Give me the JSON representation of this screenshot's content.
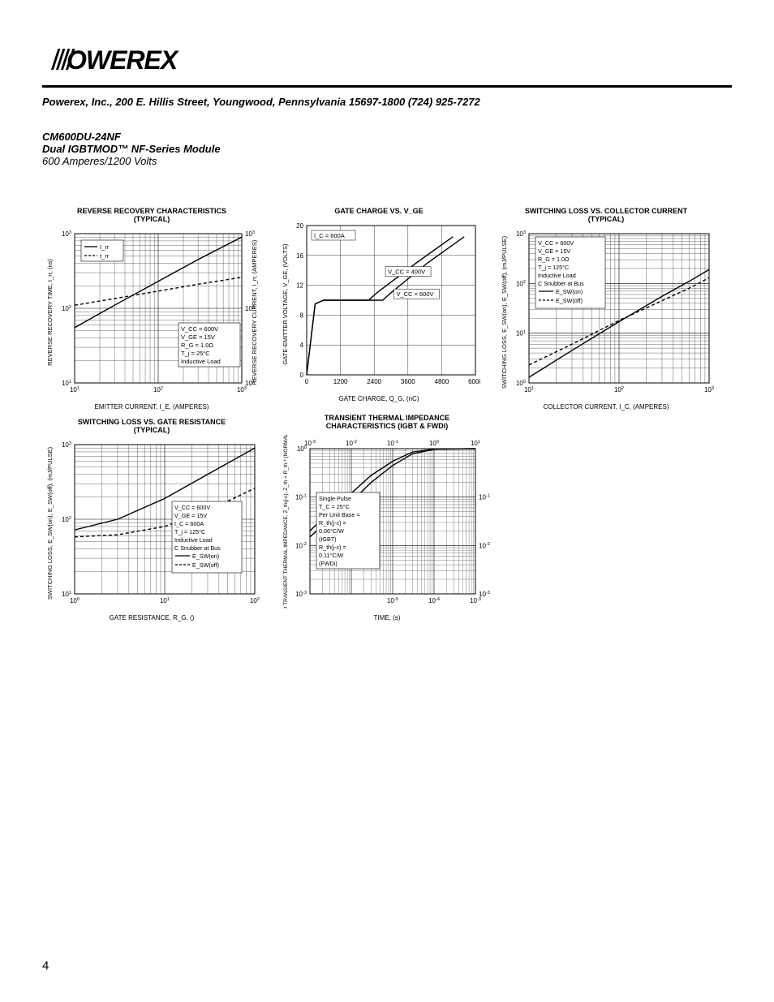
{
  "header": {
    "company_line": "Powerex, Inc., 200 E. Hillis Street, Youngwood, Pennsylvania 15697-1800 (724) 925-7272",
    "part_number": "CM600DU-24NF",
    "module_line": "Dual IGBTMOD™ NF-Series Module",
    "rating_line": "600 Amperes/1200 Volts"
  },
  "page_number": "4",
  "colors": {
    "ink": "#000000",
    "bg": "#ffffff",
    "grid": "#000000"
  },
  "charts": {
    "reverse_recovery": {
      "title": "REVERSE RECOVERY CHARACTERISTICS (TYPICAL)",
      "xlabel": "EMITTER CURRENT, I_E, (AMPERES)",
      "ylabel_left": "REVERSE RECOVERY TIME, t_rr, (ns)",
      "ylabel_right": "REVERSE RECOVERY CURRENT, I_rr, (AMPERES)",
      "xscale": "log",
      "yscale": "log",
      "xlim": [
        10,
        1000
      ],
      "ylim": [
        10,
        1000
      ],
      "xticks": [
        "10^1",
        "10^2",
        "10^3"
      ],
      "yticks": [
        "10^1",
        "10^2",
        "10^3"
      ],
      "legend": [
        {
          "label": "I_rr",
          "dash": "solid"
        },
        {
          "label": "t_rr",
          "dash": "dash"
        }
      ],
      "conditions": [
        "V_CC = 600V",
        "V_GE = 15V",
        "R_G = 1.0Ω",
        "T_j = 25°C",
        "Inductive Load"
      ],
      "series": {
        "Irr": [
          [
            10,
            55
          ],
          [
            30,
            110
          ],
          [
            100,
            230
          ],
          [
            300,
            450
          ],
          [
            1000,
            900
          ]
        ],
        "trr": [
          [
            10,
            110
          ],
          [
            30,
            135
          ],
          [
            100,
            170
          ],
          [
            300,
            210
          ],
          [
            1000,
            260
          ]
        ]
      },
      "line_width": 1.4
    },
    "gate_charge": {
      "title": "GATE CHARGE VS. V_GE",
      "xlabel": "GATE CHARGE, Q_G, (nC)",
      "ylabel": "GATE-EMITTER VOLTAGE, V_GE, (VOLTS)",
      "xscale": "linear",
      "yscale": "linear",
      "xlim": [
        0,
        6000
      ],
      "ylim": [
        0,
        20
      ],
      "xticks": [
        0,
        1200,
        2400,
        3600,
        4800,
        6000
      ],
      "yticks": [
        0,
        4,
        8,
        12,
        16,
        20
      ],
      "annotations": [
        "I_C = 600A",
        "V_CC = 400V",
        "V_CC = 600V"
      ],
      "series": {
        "400V": [
          [
            0,
            0
          ],
          [
            300,
            9.5
          ],
          [
            600,
            10
          ],
          [
            2200,
            10
          ],
          [
            2500,
            11
          ],
          [
            3900,
            15
          ],
          [
            5200,
            18.5
          ]
        ],
        "600V": [
          [
            0,
            0
          ],
          [
            300,
            9.5
          ],
          [
            600,
            10
          ],
          [
            2700,
            10
          ],
          [
            3000,
            11
          ],
          [
            4300,
            15
          ],
          [
            5600,
            18.5
          ]
        ]
      },
      "line_width": 1.4
    },
    "switching_loss_current": {
      "title": "SWITCHING LOSS VS. COLLECTOR CURRENT (TYPICAL)",
      "xlabel": "COLLECTOR CURRENT, I_C, (AMPERES)",
      "ylabel": "SWITCHING LOSS, E_SW(on), E_SW(off), (mJ/PULSE)",
      "xscale": "log",
      "yscale": "log",
      "xlim": [
        10,
        1000
      ],
      "ylim": [
        1,
        1000
      ],
      "xticks": [
        "10^1",
        "10^2",
        "10^3"
      ],
      "yticks": [
        "10^0",
        "10^1",
        "10^2",
        "10^3"
      ],
      "conditions": [
        "V_CC = 600V",
        "V_GE = 15V",
        "R_G = 1.0Ω",
        "T_j = 125°C",
        "Inductive Load",
        "C Snubber at Bus"
      ],
      "legend": [
        {
          "label": "E_SW(on)",
          "dash": "solid"
        },
        {
          "label": "E_SW(off)",
          "dash": "dash"
        }
      ],
      "series": {
        "Eon": [
          [
            10,
            1.3
          ],
          [
            30,
            4.5
          ],
          [
            100,
            17
          ],
          [
            300,
            55
          ],
          [
            600,
            110
          ],
          [
            1000,
            190
          ]
        ],
        "Eoff": [
          [
            10,
            2.3
          ],
          [
            30,
            6.0
          ],
          [
            100,
            18
          ],
          [
            300,
            45
          ],
          [
            600,
            80
          ],
          [
            1000,
            130
          ]
        ]
      },
      "line_width": 1.4
    },
    "switching_loss_gate": {
      "title": "SWITCHING LOSS VS. GATE RESISTANCE (TYPICAL)",
      "xlabel": "GATE RESISTANCE, R_G, ()",
      "ylabel": "SWITCHING LOSS, E_SW(on), E_SW(off), (mJ/PULSE)",
      "xscale": "log",
      "yscale": "log",
      "xlim": [
        1,
        100
      ],
      "ylim": [
        10,
        1000
      ],
      "xticks": [
        "10^0",
        "10^1",
        "10^2"
      ],
      "yticks": [
        "10^1",
        "10^2",
        "10^3"
      ],
      "conditions": [
        "V_CC = 600V",
        "V_GE = 15V",
        "I_C = 600A",
        "T_j = 125°C",
        "Inductive Load",
        "C Snubber at Bus"
      ],
      "legend": [
        {
          "label": "E_SW(on)",
          "dash": "solid"
        },
        {
          "label": "E_SW(off)",
          "dash": "dash"
        }
      ],
      "series": {
        "Eon": [
          [
            1,
            72
          ],
          [
            3,
            100
          ],
          [
            10,
            190
          ],
          [
            30,
            400
          ],
          [
            100,
            900
          ]
        ],
        "Eoff": [
          [
            1,
            58
          ],
          [
            3,
            62
          ],
          [
            10,
            80
          ],
          [
            30,
            130
          ],
          [
            100,
            260
          ]
        ]
      },
      "line_width": 1.4
    },
    "transient_thermal": {
      "title": "TRANSIENT THERMAL IMPEDANCE CHARACTERISTICS (IGBT & FWDi)",
      "xlabel": "TIME, (s)",
      "ylabel": "NORMALIZED TRANSIENT THERMAL IMPEDANCE, Z_th(j-c), Z_th = R_th * (NORMALIZED VALUE)",
      "xscale": "log",
      "yscale": "log",
      "xlim_top": [
        0.001,
        10
      ],
      "xlim_bottom": [
        1e-05,
        0.001
      ],
      "ylim_left": [
        0.001,
        1
      ],
      "ylim_right": [
        0.001,
        0.1
      ],
      "ticks_top": [
        "10^-3",
        "10^-2",
        "10^-1",
        "10^0",
        "10^1"
      ],
      "ticks_bottom": [
        "10^-5",
        "10^-4",
        "10^-3"
      ],
      "ticks_left": [
        "10^-3",
        "10^-2",
        "10^-1",
        "10^0"
      ],
      "ticks_right": [
        "10^-3",
        "10^-2",
        "10^-1"
      ],
      "conditions": [
        "Single Pulse",
        "T_C = 25°C",
        "Per Unit Base =",
        "R_th(j-c) = 0.06°C/W (IGBT)",
        "R_th(j-c) = 0.11°C/W (FWDi)"
      ],
      "series": {
        "IGBT": [
          [
            0.001,
            0.02
          ],
          [
            0.003,
            0.05
          ],
          [
            0.01,
            0.12
          ],
          [
            0.03,
            0.28
          ],
          [
            0.1,
            0.55
          ],
          [
            0.3,
            0.85
          ],
          [
            1,
            0.98
          ],
          [
            10,
            1.0
          ]
        ],
        "FWDi": [
          [
            0.001,
            0.015
          ],
          [
            0.003,
            0.035
          ],
          [
            0.01,
            0.08
          ],
          [
            0.03,
            0.2
          ],
          [
            0.1,
            0.45
          ],
          [
            0.3,
            0.78
          ],
          [
            1,
            0.97
          ],
          [
            10,
            1.0
          ]
        ]
      },
      "line_width": 1.4
    }
  }
}
